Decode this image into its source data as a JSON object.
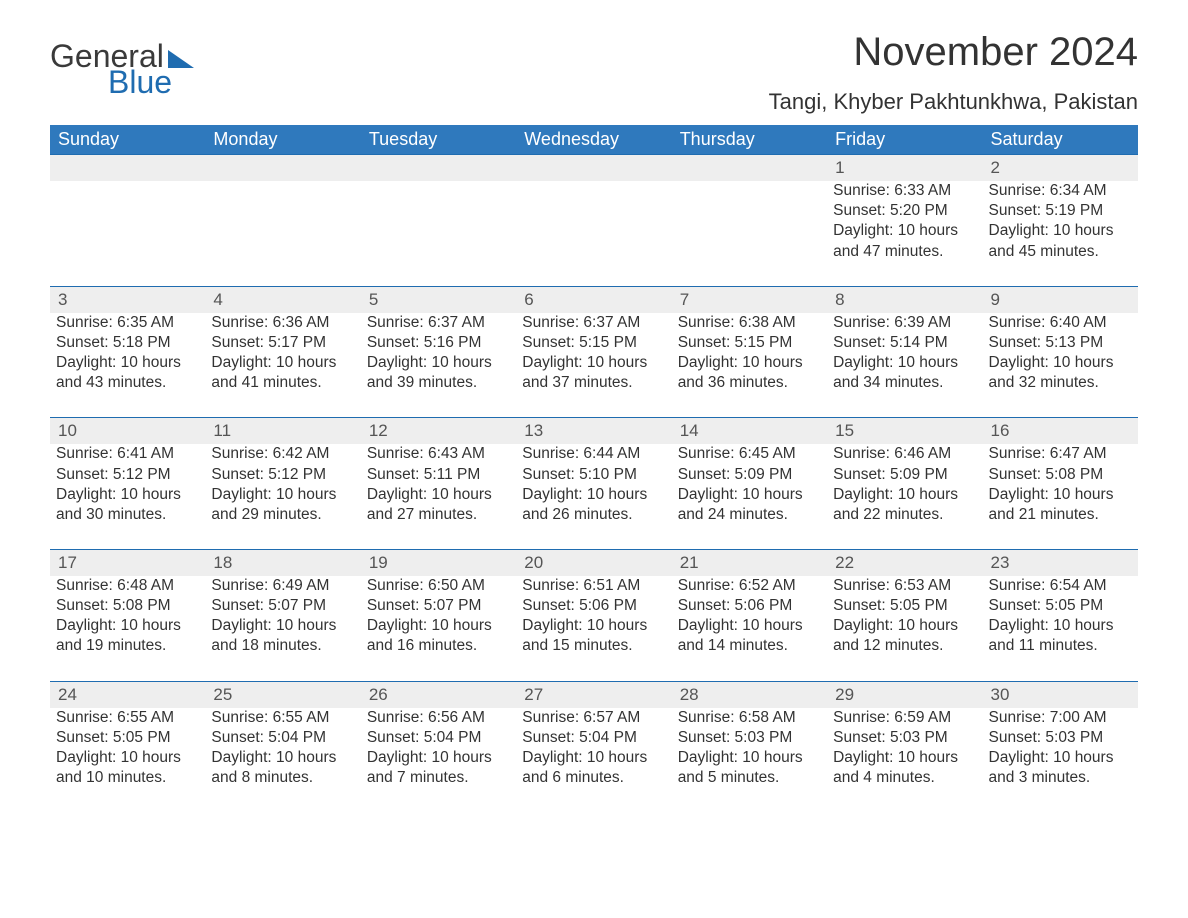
{
  "brand": {
    "part1": "General",
    "part2": "Blue"
  },
  "title": "November 2024",
  "location": "Tangi, Khyber Pakhtunkhwa, Pakistan",
  "colors": {
    "header_bg": "#2f79bd",
    "header_text": "#ffffff",
    "daynum_bg": "#eeeeee",
    "daynum_border": "#1f6cb0",
    "body_text": "#333333",
    "logo_blue": "#1f6cb0",
    "logo_gray": "#3a3a3a",
    "page_bg": "#ffffff"
  },
  "fonts": {
    "title_size_pt": 30,
    "location_size_pt": 16,
    "header_size_pt": 13,
    "daynum_size_pt": 13,
    "body_size_pt": 11
  },
  "dayHeaders": [
    "Sunday",
    "Monday",
    "Tuesday",
    "Wednesday",
    "Thursday",
    "Friday",
    "Saturday"
  ],
  "weeks": [
    [
      null,
      null,
      null,
      null,
      null,
      {
        "n": "1",
        "sunrise": "Sunrise: 6:33 AM",
        "sunset": "Sunset: 5:20 PM",
        "daylight": "Daylight: 10 hours and 47 minutes."
      },
      {
        "n": "2",
        "sunrise": "Sunrise: 6:34 AM",
        "sunset": "Sunset: 5:19 PM",
        "daylight": "Daylight: 10 hours and 45 minutes."
      }
    ],
    [
      {
        "n": "3",
        "sunrise": "Sunrise: 6:35 AM",
        "sunset": "Sunset: 5:18 PM",
        "daylight": "Daylight: 10 hours and 43 minutes."
      },
      {
        "n": "4",
        "sunrise": "Sunrise: 6:36 AM",
        "sunset": "Sunset: 5:17 PM",
        "daylight": "Daylight: 10 hours and 41 minutes."
      },
      {
        "n": "5",
        "sunrise": "Sunrise: 6:37 AM",
        "sunset": "Sunset: 5:16 PM",
        "daylight": "Daylight: 10 hours and 39 minutes."
      },
      {
        "n": "6",
        "sunrise": "Sunrise: 6:37 AM",
        "sunset": "Sunset: 5:15 PM",
        "daylight": "Daylight: 10 hours and 37 minutes."
      },
      {
        "n": "7",
        "sunrise": "Sunrise: 6:38 AM",
        "sunset": "Sunset: 5:15 PM",
        "daylight": "Daylight: 10 hours and 36 minutes."
      },
      {
        "n": "8",
        "sunrise": "Sunrise: 6:39 AM",
        "sunset": "Sunset: 5:14 PM",
        "daylight": "Daylight: 10 hours and 34 minutes."
      },
      {
        "n": "9",
        "sunrise": "Sunrise: 6:40 AM",
        "sunset": "Sunset: 5:13 PM",
        "daylight": "Daylight: 10 hours and 32 minutes."
      }
    ],
    [
      {
        "n": "10",
        "sunrise": "Sunrise: 6:41 AM",
        "sunset": "Sunset: 5:12 PM",
        "daylight": "Daylight: 10 hours and 30 minutes."
      },
      {
        "n": "11",
        "sunrise": "Sunrise: 6:42 AM",
        "sunset": "Sunset: 5:12 PM",
        "daylight": "Daylight: 10 hours and 29 minutes."
      },
      {
        "n": "12",
        "sunrise": "Sunrise: 6:43 AM",
        "sunset": "Sunset: 5:11 PM",
        "daylight": "Daylight: 10 hours and 27 minutes."
      },
      {
        "n": "13",
        "sunrise": "Sunrise: 6:44 AM",
        "sunset": "Sunset: 5:10 PM",
        "daylight": "Daylight: 10 hours and 26 minutes."
      },
      {
        "n": "14",
        "sunrise": "Sunrise: 6:45 AM",
        "sunset": "Sunset: 5:09 PM",
        "daylight": "Daylight: 10 hours and 24 minutes."
      },
      {
        "n": "15",
        "sunrise": "Sunrise: 6:46 AM",
        "sunset": "Sunset: 5:09 PM",
        "daylight": "Daylight: 10 hours and 22 minutes."
      },
      {
        "n": "16",
        "sunrise": "Sunrise: 6:47 AM",
        "sunset": "Sunset: 5:08 PM",
        "daylight": "Daylight: 10 hours and 21 minutes."
      }
    ],
    [
      {
        "n": "17",
        "sunrise": "Sunrise: 6:48 AM",
        "sunset": "Sunset: 5:08 PM",
        "daylight": "Daylight: 10 hours and 19 minutes."
      },
      {
        "n": "18",
        "sunrise": "Sunrise: 6:49 AM",
        "sunset": "Sunset: 5:07 PM",
        "daylight": "Daylight: 10 hours and 18 minutes."
      },
      {
        "n": "19",
        "sunrise": "Sunrise: 6:50 AM",
        "sunset": "Sunset: 5:07 PM",
        "daylight": "Daylight: 10 hours and 16 minutes."
      },
      {
        "n": "20",
        "sunrise": "Sunrise: 6:51 AM",
        "sunset": "Sunset: 5:06 PM",
        "daylight": "Daylight: 10 hours and 15 minutes."
      },
      {
        "n": "21",
        "sunrise": "Sunrise: 6:52 AM",
        "sunset": "Sunset: 5:06 PM",
        "daylight": "Daylight: 10 hours and 14 minutes."
      },
      {
        "n": "22",
        "sunrise": "Sunrise: 6:53 AM",
        "sunset": "Sunset: 5:05 PM",
        "daylight": "Daylight: 10 hours and 12 minutes."
      },
      {
        "n": "23",
        "sunrise": "Sunrise: 6:54 AM",
        "sunset": "Sunset: 5:05 PM",
        "daylight": "Daylight: 10 hours and 11 minutes."
      }
    ],
    [
      {
        "n": "24",
        "sunrise": "Sunrise: 6:55 AM",
        "sunset": "Sunset: 5:05 PM",
        "daylight": "Daylight: 10 hours and 10 minutes."
      },
      {
        "n": "25",
        "sunrise": "Sunrise: 6:55 AM",
        "sunset": "Sunset: 5:04 PM",
        "daylight": "Daylight: 10 hours and 8 minutes."
      },
      {
        "n": "26",
        "sunrise": "Sunrise: 6:56 AM",
        "sunset": "Sunset: 5:04 PM",
        "daylight": "Daylight: 10 hours and 7 minutes."
      },
      {
        "n": "27",
        "sunrise": "Sunrise: 6:57 AM",
        "sunset": "Sunset: 5:04 PM",
        "daylight": "Daylight: 10 hours and 6 minutes."
      },
      {
        "n": "28",
        "sunrise": "Sunrise: 6:58 AM",
        "sunset": "Sunset: 5:03 PM",
        "daylight": "Daylight: 10 hours and 5 minutes."
      },
      {
        "n": "29",
        "sunrise": "Sunrise: 6:59 AM",
        "sunset": "Sunset: 5:03 PM",
        "daylight": "Daylight: 10 hours and 4 minutes."
      },
      {
        "n": "30",
        "sunrise": "Sunrise: 7:00 AM",
        "sunset": "Sunset: 5:03 PM",
        "daylight": "Daylight: 10 hours and 3 minutes."
      }
    ]
  ]
}
